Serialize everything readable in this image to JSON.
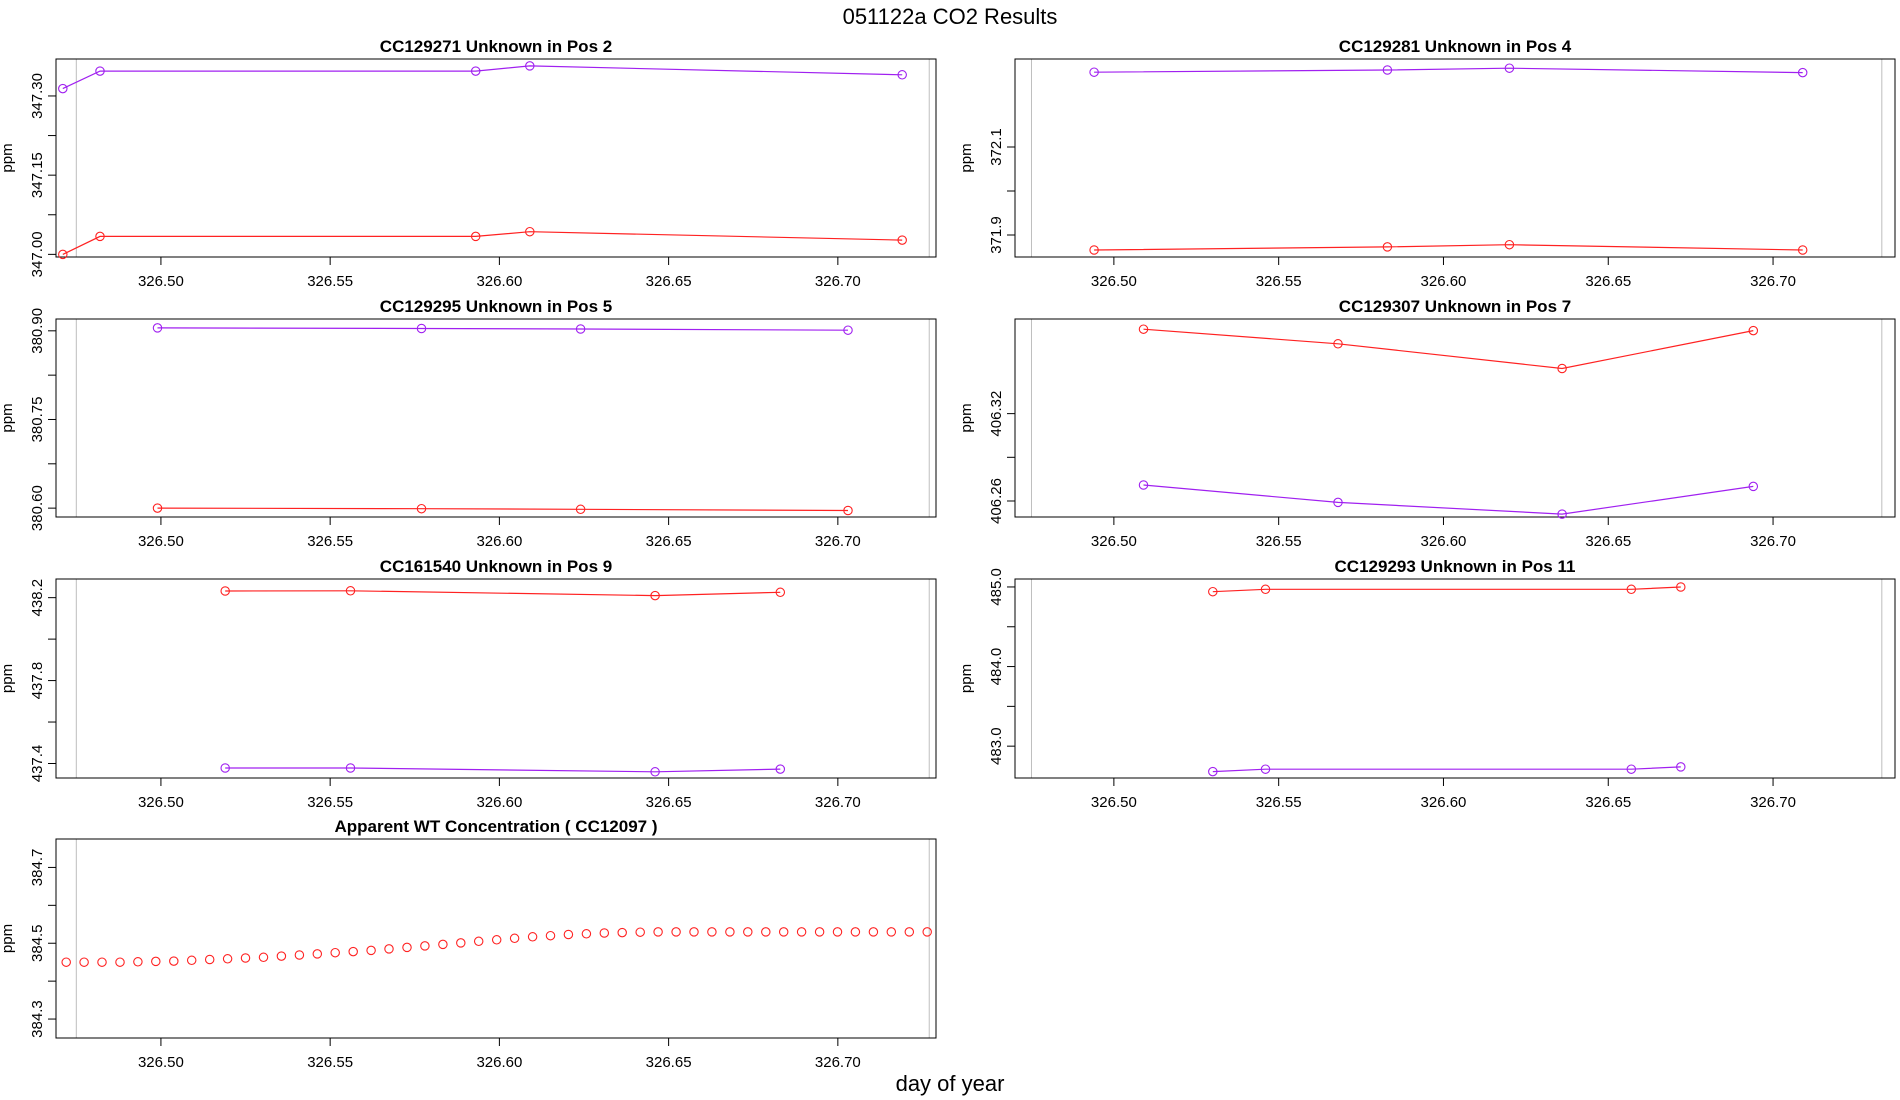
{
  "page": {
    "title": "051122a  CO2 Results",
    "xlabel": "day of year"
  },
  "colors": {
    "series_purple": "#a020f0",
    "series_red": "#ff2222",
    "frame": "#000000",
    "ref_line": "#bebebe"
  },
  "chart_data": [
    {
      "type": "line",
      "title": "CC129271    Unknown in Pos 2",
      "ylabel": "ppm",
      "xlim": [
        326.469,
        326.729
      ],
      "ylim": [
        346.995,
        347.37
      ],
      "xticks": [
        "326.50",
        "326.55",
        "326.60",
        "326.65",
        "326.70"
      ],
      "yticks": [
        "347.00",
        "347.15",
        "347.30"
      ],
      "ref_x": [
        326.475,
        326.727
      ],
      "series": [
        {
          "color": "#a020f0",
          "x": [
            326.471,
            326.482,
            326.593,
            326.609,
            326.719
          ],
          "y": [
            347.314,
            347.347,
            347.347,
            347.357,
            347.34
          ]
        },
        {
          "color": "#ff2222",
          "x": [
            326.471,
            326.482,
            326.593,
            326.609,
            326.719
          ],
          "y": [
            347.0,
            347.034,
            347.034,
            347.043,
            347.027
          ]
        }
      ]
    },
    {
      "type": "line",
      "title": "CC129281    Unknown in Pos 4",
      "ylabel": "ppm",
      "xlim": [
        326.47,
        326.737
      ],
      "ylim": [
        371.85,
        372.3
      ],
      "xticks": [
        "326.50",
        "326.55",
        "326.60",
        "326.65",
        "326.70"
      ],
      "yticks": [
        "371.9",
        "372.1"
      ],
      "ref_x": [
        326.475,
        326.733
      ],
      "series": [
        {
          "color": "#a020f0",
          "x": [
            326.494,
            326.583,
            326.62,
            326.709
          ],
          "y": [
            372.27,
            372.275,
            372.279,
            372.269
          ]
        },
        {
          "color": "#ff2222",
          "x": [
            326.494,
            326.583,
            326.62,
            326.709
          ],
          "y": [
            371.866,
            371.873,
            371.878,
            371.866
          ]
        }
      ]
    },
    {
      "type": "line",
      "title": "CC129295    Unknown in Pos 5",
      "ylabel": "ppm",
      "xlim": [
        326.469,
        326.729
      ],
      "ylim": [
        380.585,
        380.92
      ],
      "xticks": [
        "326.50",
        "326.55",
        "326.60",
        "326.65",
        "326.70"
      ],
      "yticks": [
        "380.60",
        "380.75",
        "380.90"
      ],
      "ref_x": [
        326.475,
        326.727
      ],
      "series": [
        {
          "color": "#a020f0",
          "x": [
            326.499,
            326.577,
            326.624,
            326.703
          ],
          "y": [
            380.905,
            380.904,
            380.903,
            380.901
          ]
        },
        {
          "color": "#ff2222",
          "x": [
            326.499,
            326.577,
            326.624,
            326.703
          ],
          "y": [
            380.6,
            380.599,
            380.598,
            380.596
          ]
        }
      ]
    },
    {
      "type": "line",
      "title": "CC129307    Unknown in Pos 7",
      "ylabel": "ppm",
      "xlim": [
        326.47,
        326.737
      ],
      "ylim": [
        406.249,
        406.385
      ],
      "xticks": [
        "326.50",
        "326.55",
        "326.60",
        "326.65",
        "326.70"
      ],
      "yticks": [
        "406.26",
        "406.32"
      ],
      "ref_x": [
        326.475,
        326.733
      ],
      "series": [
        {
          "color": "#a020f0",
          "x": [
            326.509,
            326.568,
            326.636,
            326.694
          ],
          "y": [
            406.271,
            406.259,
            406.251,
            406.27
          ]
        },
        {
          "color": "#ff2222",
          "x": [
            326.509,
            326.568,
            326.636,
            326.694
          ],
          "y": [
            406.378,
            406.368,
            406.351,
            406.377
          ]
        }
      ]
    },
    {
      "type": "line",
      "title": "CC161540    Unknown in Pos 9",
      "ylabel": "ppm",
      "xlim": [
        326.469,
        326.729
      ],
      "ylim": [
        437.33,
        438.29
      ],
      "xticks": [
        "326.50",
        "326.55",
        "326.60",
        "326.65",
        "326.70"
      ],
      "yticks": [
        "437.4",
        "437.8",
        "438.2"
      ],
      "ref_x": [
        326.475,
        326.727
      ],
      "series": [
        {
          "color": "#ff2222",
          "x": [
            326.519,
            326.556,
            326.646,
            326.683
          ],
          "y": [
            438.232,
            438.233,
            438.21,
            438.226
          ]
        },
        {
          "color": "#a020f0",
          "x": [
            326.519,
            326.556,
            326.646,
            326.683
          ],
          "y": [
            437.378,
            437.378,
            437.36,
            437.373
          ]
        }
      ]
    },
    {
      "type": "line",
      "title": "CC129293    Unknown in Pos 11",
      "ylabel": "ppm",
      "xlim": [
        326.47,
        326.737
      ],
      "ylim": [
        482.6,
        485.1
      ],
      "xticks": [
        "326.50",
        "326.55",
        "326.60",
        "326.65",
        "326.70"
      ],
      "yticks": [
        "483.0",
        "484.0",
        "485.0"
      ],
      "ref_x": [
        326.475,
        326.733
      ],
      "series": [
        {
          "color": "#ff2222",
          "x": [
            326.53,
            326.546,
            326.657,
            326.672
          ],
          "y": [
            484.94,
            484.97,
            484.97,
            485.0
          ]
        },
        {
          "color": "#a020f0",
          "x": [
            326.53,
            326.546,
            326.657,
            326.672
          ],
          "y": [
            482.68,
            482.71,
            482.71,
            482.74
          ]
        }
      ]
    },
    {
      "type": "scatter",
      "title": "Apparent WT Concentration ( CC12097 )",
      "ylabel": "ppm",
      "xlim": [
        326.469,
        326.729
      ],
      "ylim": [
        384.25,
        384.775
      ],
      "xticks": [
        "326.50",
        "326.55",
        "326.60",
        "326.65",
        "326.70"
      ],
      "yticks": [
        "384.3",
        "384.5",
        "384.7"
      ],
      "ref_x": [
        326.475,
        326.727
      ],
      "series": [
        {
          "color": "#ff2222",
          "x": [
            326.472,
            326.4773,
            326.4826,
            326.4879,
            326.4932,
            326.4985,
            326.5038,
            326.5091,
            326.5144,
            326.5197,
            326.525,
            326.5303,
            326.5356,
            326.5409,
            326.5462,
            326.5515,
            326.5568,
            326.5621,
            326.5674,
            326.5727,
            326.578,
            326.5833,
            326.5886,
            326.5939,
            326.5992,
            326.6045,
            326.6098,
            326.6151,
            326.6204,
            326.6257,
            326.631,
            326.6363,
            326.6416,
            326.6469,
            326.6522,
            326.6575,
            326.6628,
            326.6681,
            326.6734,
            326.6787,
            326.684,
            326.6893,
            326.6946,
            326.6999,
            326.7052,
            326.7105,
            326.7158,
            326.7211,
            326.7264
          ],
          "y": [
            384.45,
            384.45,
            384.45,
            384.45,
            384.451,
            384.452,
            384.453,
            384.455,
            384.457,
            384.459,
            384.461,
            384.463,
            384.466,
            384.469,
            384.472,
            384.475,
            384.478,
            384.481,
            384.485,
            384.489,
            384.493,
            384.497,
            384.501,
            384.505,
            384.509,
            384.513,
            384.517,
            384.52,
            384.523,
            384.525,
            384.527,
            384.528,
            384.529,
            384.53,
            384.53,
            384.53,
            384.53,
            384.53,
            384.53,
            384.53,
            384.53,
            384.53,
            384.53,
            384.53,
            384.53,
            384.53,
            384.53,
            384.53,
            384.53
          ]
        }
      ]
    }
  ]
}
